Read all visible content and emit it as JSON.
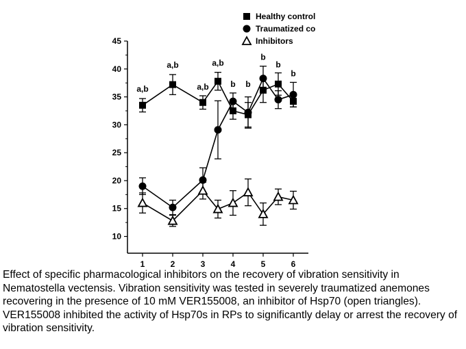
{
  "chart_data": {
    "type": "line",
    "x": [
      1,
      2,
      3,
      3.5,
      4,
      4.5,
      5,
      5.5,
      6
    ],
    "xticks": [
      "1",
      "2",
      "3",
      "4",
      "5",
      "6"
    ],
    "yticks": [
      "10",
      "15",
      "20",
      "25",
      "30",
      "35",
      "40",
      "45"
    ],
    "ylim": [
      7,
      45
    ],
    "xlim": [
      0.5,
      6.5
    ],
    "title": "",
    "xlabel": "",
    "ylabel": "",
    "legend_position": "top-right",
    "series": [
      {
        "name": "Healthy controls",
        "marker": "square",
        "x": [
          1,
          2,
          3,
          3.5,
          4,
          4.5,
          5,
          5.5,
          6
        ],
        "values": [
          33.5,
          37.2,
          34.0,
          37.8,
          32.5,
          31.8,
          36.2,
          37.3,
          34.2
        ],
        "errors": [
          1.2,
          1.8,
          1.2,
          1.6,
          1.5,
          2.2,
          2.2,
          2.0,
          1.0
        ]
      },
      {
        "name": "Traumatized controls",
        "marker": "circle",
        "x": [
          1,
          2,
          3,
          3.5,
          4,
          4.5,
          5,
          5.5,
          6
        ],
        "values": [
          19.0,
          15.2,
          20.1,
          29.1,
          34.2,
          32.2,
          38.3,
          34.5,
          35.4
        ],
        "errors": [
          1.5,
          1.3,
          2.2,
          5.2,
          1.5,
          2.8,
          2.2,
          1.6,
          2.2
        ]
      },
      {
        "name": "Inhibitors",
        "marker": "triangle-open",
        "x": [
          1,
          2,
          3,
          3.5,
          4,
          4.5,
          5,
          5.5,
          6
        ],
        "values": [
          16.0,
          12.8,
          18.2,
          14.9,
          16.0,
          17.9,
          14.0,
          17.1,
          16.5
        ],
        "errors": [
          1.8,
          1.0,
          1.5,
          1.6,
          2.2,
          2.4,
          2.0,
          1.4,
          1.6
        ]
      }
    ],
    "annotations": [
      {
        "x": 1,
        "text": "a,b",
        "y": 35.9
      },
      {
        "x": 2,
        "text": "a,b",
        "y": 40.2
      },
      {
        "x": 3,
        "text": "a,b",
        "y": 36.3
      },
      {
        "x": 3.5,
        "text": "a,b",
        "y": 40.6
      },
      {
        "x": 4,
        "text": "b",
        "y": 36.8
      },
      {
        "x": 4.5,
        "text": "b",
        "y": 36.8
      },
      {
        "x": 5,
        "text": "b",
        "y": 41.6
      },
      {
        "x": 5.5,
        "text": "b",
        "y": 40.3
      },
      {
        "x": 6,
        "text": "b",
        "y": 38.7
      }
    ]
  },
  "caption": "Effect of specific pharmacological inhibitors on the recovery of vibration sensitivity in Nematostella vectensis. Vibration sensitivity was tested in severely traumatized anemones recovering in the presence of 10 mM VER155008, an inhibitor of Hsp70 (open triangles). VER155008 inhibited the activity of Hsp70s in RPs to significantly delay or arrest the recovery of vibration sensitivity."
}
